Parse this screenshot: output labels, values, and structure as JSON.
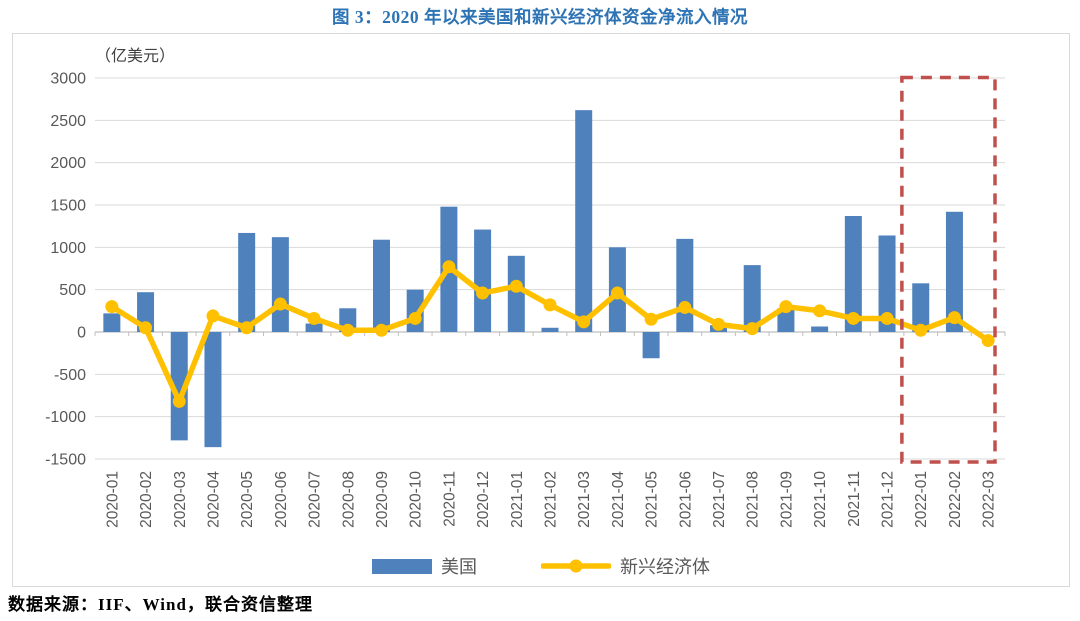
{
  "page": {
    "title": "图 3：2020 年以来美国和新兴经济体资金净流入情况",
    "source_note": "数据来源：IIF、Wind，联合资信整理"
  },
  "colors": {
    "title_blue": "#2E74B5",
    "us_bar_blue": "#4F81BD",
    "em_line_yellow": "#FFC000",
    "highlight_red": "#C0504D",
    "gridline_gray": "#D9D9D9",
    "axis_gray": "#BFBFBF",
    "tick_label_gray": "#595959",
    "box_border_gray": "#D9D9D9"
  },
  "chart_data": {
    "type": "bar",
    "title": "图 3：2020 年以来美国和新兴经济体资金净流入情况",
    "unit_label": "（亿美元）",
    "xlabel": "",
    "ylabel": "（亿美元）",
    "ylim": [
      -1500,
      3000
    ],
    "ytick_step": 500,
    "grid": true,
    "legend_position": "bottom",
    "categories": [
      "2020-01",
      "2020-02",
      "2020-03",
      "2020-04",
      "2020-05",
      "2020-06",
      "2020-07",
      "2020-08",
      "2020-09",
      "2020-10",
      "2020-11",
      "2020-12",
      "2021-01",
      "2021-02",
      "2021-03",
      "2021-04",
      "2021-05",
      "2021-06",
      "2021-07",
      "2021-08",
      "2021-09",
      "2021-10",
      "2021-11",
      "2021-12",
      "2022-01",
      "2022-02",
      "2022-03"
    ],
    "series": [
      {
        "name": "美国",
        "kind": "bar",
        "color": "#4F81BD",
        "values": [
          220,
          470,
          -1280,
          -1360,
          1170,
          1120,
          100,
          280,
          1090,
          500,
          1480,
          1210,
          900,
          50,
          2620,
          1000,
          -310,
          1100,
          80,
          790,
          280,
          65,
          1370,
          1140,
          575,
          1420,
          0
        ]
      },
      {
        "name": "新兴经济体",
        "kind": "line",
        "color": "#FFC000",
        "values": [
          300,
          50,
          -820,
          190,
          50,
          330,
          160,
          20,
          20,
          160,
          770,
          460,
          540,
          320,
          120,
          460,
          150,
          290,
          90,
          40,
          300,
          250,
          160,
          160,
          20,
          170,
          -100
        ]
      }
    ],
    "highlight_box": {
      "from_category": "2022-01",
      "to_category": "2022-03",
      "color": "#C0504D",
      "style": "dashed"
    }
  }
}
